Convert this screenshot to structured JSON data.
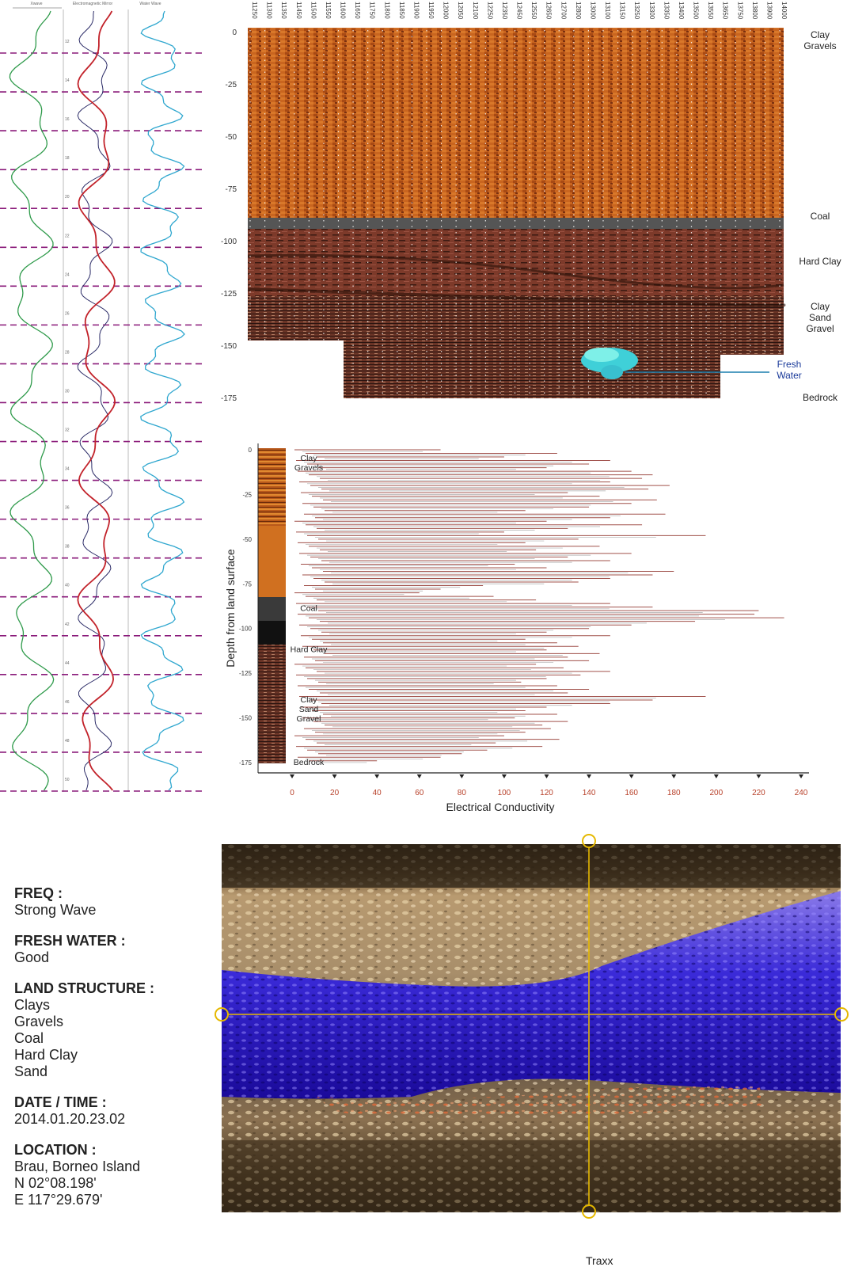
{
  "logs": {
    "headers": [
      "Xwave",
      "Electromagnetic Mirror",
      "Water Wave"
    ],
    "depth_ticks": [
      "12",
      "14",
      "16",
      "18",
      "20",
      "22",
      "24",
      "26",
      "28",
      "30",
      "32",
      "34",
      "36",
      "38",
      "40",
      "42",
      "44",
      "46",
      "48",
      "50"
    ]
  },
  "section": {
    "stations": [
      "11250",
      "11300",
      "11350",
      "11450",
      "11500",
      "11550",
      "11600",
      "11650",
      "11750",
      "11800",
      "11850",
      "11900",
      "11950",
      "12000",
      "12050",
      "12100",
      "12250",
      "12350",
      "12450",
      "12550",
      "12650",
      "12700",
      "12800",
      "13000",
      "13100",
      "13150",
      "13250",
      "13300",
      "13350",
      "13400",
      "13500",
      "13550",
      "13650",
      "13750",
      "13800",
      "13900",
      "14000"
    ],
    "y_ticks": [
      "0",
      "-25",
      "-50",
      "-75",
      "-100",
      "-125",
      "-150",
      "-175"
    ],
    "layers": [
      {
        "name": "Clay Gravels",
        "lines": [
          "Clay",
          "Gravels"
        ]
      },
      {
        "name": "Coal",
        "lines": [
          "Coal"
        ]
      },
      {
        "name": "Hard Clay",
        "lines": [
          "Hard Clay"
        ]
      },
      {
        "name": "Clay Sand Gravel",
        "lines": [
          "Clay",
          "Sand",
          "Gravel"
        ]
      },
      {
        "name": "Fresh Water",
        "lines": [
          "Fresh",
          "Water"
        ]
      },
      {
        "name": "Bedrock",
        "lines": [
          "Bedrock"
        ]
      }
    ]
  },
  "chart_data": {
    "type": "bar",
    "orientation": "horizontal",
    "xlabel": "Electrical Conductivity",
    "ylabel": "Depth from land surface",
    "xlim": [
      0,
      240
    ],
    "ylim": [
      -175,
      0
    ],
    "x_ticks": [
      "0",
      "20",
      "40",
      "60",
      "80",
      "100",
      "120",
      "140",
      "160",
      "180",
      "200",
      "220",
      "240"
    ],
    "y_ticks": [
      "0",
      "-25",
      "-50",
      "-75",
      "-100",
      "-125",
      "-150",
      "-175"
    ],
    "annotations": [
      {
        "text": [
          "Clay",
          "Gravels"
        ],
        "depth": -8
      },
      {
        "text": [
          "Coal"
        ],
        "depth": -92
      },
      {
        "text": [
          "Hard Clay"
        ],
        "depth": -115
      },
      {
        "text": [
          "Clay",
          "Sand",
          "Gravel"
        ],
        "depth": -143
      },
      {
        "text": [
          "Bedrock"
        ],
        "depth": -178
      }
    ],
    "series": [
      {
        "values_note": "approx",
        "points": [
          [
            0,
            70
          ],
          [
            -2,
            125
          ],
          [
            -4,
            100
          ],
          [
            -6,
            150
          ],
          [
            -8,
            140
          ],
          [
            -10,
            120
          ],
          [
            -12,
            160
          ],
          [
            -14,
            170
          ],
          [
            -16,
            165
          ],
          [
            -18,
            150
          ],
          [
            -20,
            178
          ],
          [
            -22,
            168
          ],
          [
            -24,
            130
          ],
          [
            -26,
            145
          ],
          [
            -28,
            172
          ],
          [
            -30,
            160
          ],
          [
            -32,
            140
          ],
          [
            -34,
            110
          ],
          [
            -36,
            176
          ],
          [
            -38,
            150
          ],
          [
            -40,
            120
          ],
          [
            -42,
            165
          ],
          [
            -44,
            130
          ],
          [
            -46,
            100
          ],
          [
            -48,
            195
          ],
          [
            -50,
            135
          ],
          [
            -52,
            110
          ],
          [
            -54,
            145
          ],
          [
            -56,
            115
          ],
          [
            -58,
            160
          ],
          [
            -60,
            130
          ],
          [
            -62,
            150
          ],
          [
            -64,
            105
          ],
          [
            -66,
            120
          ],
          [
            -68,
            180
          ],
          [
            -70,
            170
          ],
          [
            -72,
            150
          ],
          [
            -74,
            135
          ],
          [
            -76,
            90
          ],
          [
            -78,
            70
          ],
          [
            -80,
            60
          ],
          [
            -82,
            95
          ],
          [
            -84,
            115
          ],
          [
            -86,
            150
          ],
          [
            -88,
            170
          ],
          [
            -90,
            220
          ],
          [
            -92,
            218
          ],
          [
            -94,
            232
          ],
          [
            -96,
            190
          ],
          [
            -98,
            160
          ],
          [
            -100,
            140
          ],
          [
            -102,
            120
          ],
          [
            -104,
            150
          ],
          [
            -106,
            110
          ],
          [
            -108,
            125
          ],
          [
            -110,
            135
          ],
          [
            -112,
            120
          ],
          [
            -114,
            145
          ],
          [
            -116,
            130
          ],
          [
            -118,
            140
          ],
          [
            -120,
            115
          ],
          [
            -122,
            128
          ],
          [
            -124,
            150
          ],
          [
            -126,
            136
          ],
          [
            -128,
            120
          ],
          [
            -130,
            108
          ],
          [
            -132,
            125
          ],
          [
            -134,
            140
          ],
          [
            -136,
            130
          ],
          [
            -138,
            195
          ],
          [
            -140,
            170
          ],
          [
            -142,
            150
          ],
          [
            -144,
            120
          ],
          [
            -146,
            110
          ],
          [
            -148,
            125
          ],
          [
            -150,
            105
          ],
          [
            -152,
            130
          ],
          [
            -154,
            118
          ],
          [
            -156,
            122
          ],
          [
            -158,
            110
          ],
          [
            -160,
            100
          ],
          [
            -162,
            126
          ],
          [
            -164,
            96
          ],
          [
            -166,
            118
          ],
          [
            -168,
            92
          ],
          [
            -170,
            80
          ],
          [
            -172,
            70
          ],
          [
            -174,
            40
          ]
        ]
      }
    ]
  },
  "info": [
    {
      "title": "FREQ :",
      "values": [
        "Strong Wave"
      ]
    },
    {
      "title": "FRESH WATER :",
      "values": [
        "Good"
      ]
    },
    {
      "title": "LAND STRUCTURE :",
      "values": [
        "Clays",
        "Gravels",
        "Coal",
        "Hard Clay",
        "Sand"
      ]
    },
    {
      "title": "DATE / TIME :",
      "values": [
        "2014.01.20.23.02"
      ]
    },
    {
      "title": "LOCATION :",
      "values": [
        "Brau, Borneo Island",
        "N  02°08.198'",
        "E 117°29.679'"
      ]
    }
  ],
  "traxx_label": "Traxx",
  "colors": {
    "clay": "#c8621e",
    "coal": "#555555",
    "hardclay": "#7a3a2a",
    "water": "#3fd0d8",
    "trace_green": "#2e9a4a",
    "trace_red": "#c2222a",
    "trace_blue": "#2a2a66",
    "trace_cyan": "#2fa7cf",
    "dash": "#8a1a7a",
    "bar": "#a0504a",
    "axis_tick": "#b8412a",
    "cross": "#e5b800"
  }
}
